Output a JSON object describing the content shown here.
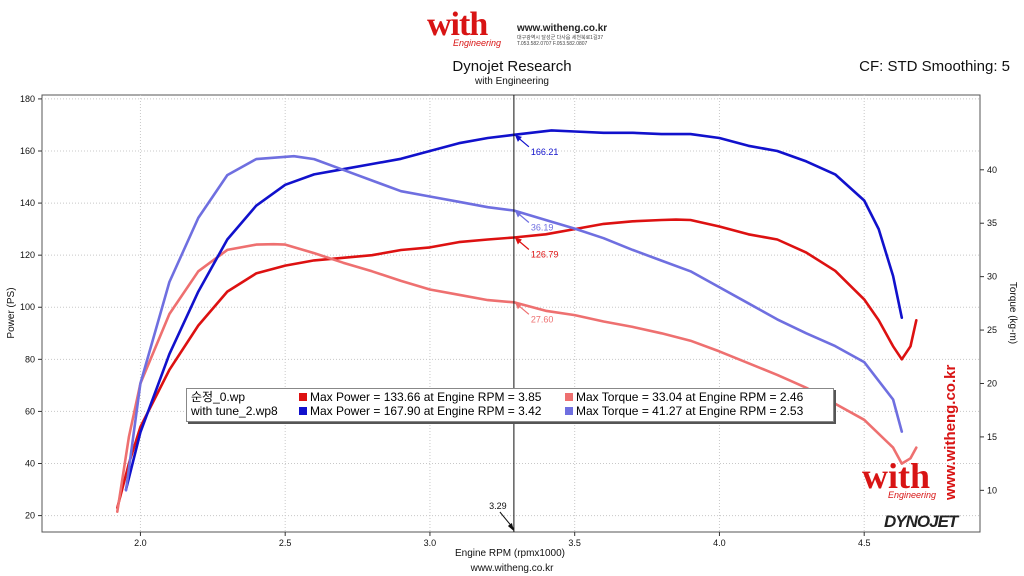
{
  "header": {
    "logo_text": "with",
    "logo_sub": "Engineering",
    "site_url": "www.witheng.co.kr",
    "address_line": "대구광역시 달성군 다사읍 세천북로1길37",
    "phone_line": "T.053.582.0707 F.053.582.0807",
    "title": "Dynojet Research",
    "subtitle": "with Engineering",
    "cf_smoothing": "CF: STD Smoothing: 5"
  },
  "footer": {
    "url": "www.witheng.co.kr",
    "side_url": "www.witheng.co.kr",
    "side_logo_text": "with",
    "side_logo_sub": "Engineering",
    "dynojet_logo": "DYNOJET"
  },
  "legend": {
    "rows": [
      {
        "name": "순정_0.wp",
        "power_text": "Max Power = 133.66 at Engine RPM = 3.85",
        "torque_text": "Max Torque = 33.04 at Engine RPM = 2.46",
        "power_color": "#dd1111",
        "torque_color": "#ee7070"
      },
      {
        "name": "with tune_2.wp8",
        "power_text": "Max Power = 167.90 at Engine RPM = 3.42",
        "torque_text": "Max Torque = 41.27 at Engine RPM = 2.53",
        "power_color": "#1111cc",
        "torque_color": "#6f6fe0"
      }
    ]
  },
  "chart_data": {
    "type": "line",
    "title": "Dynojet Research",
    "subtitle": "with Engineering",
    "xlabel": "Engine RPM (rpmx1000)",
    "ylabel": "Power (PS)",
    "y2label": "Torque (kg-m)",
    "xlim": [
      1.66,
      4.9
    ],
    "ylim": [
      13.7,
      181.5
    ],
    "y2lim": [
      6.1,
      47.0
    ],
    "x_ticks": [
      2.0,
      2.5,
      3.0,
      3.5,
      4.0,
      4.5
    ],
    "y_ticks": [
      20,
      40,
      60,
      80,
      100,
      120,
      140,
      160,
      180
    ],
    "y2_ticks": [
      10,
      15,
      20,
      25,
      30,
      35,
      40
    ],
    "grid": true,
    "cursor": {
      "x": 3.29,
      "label": "3.29"
    },
    "series": [
      {
        "name": "순정_0.wp Power",
        "axis": "left",
        "color": "#dd1111",
        "x": [
          1.92,
          1.96,
          2.0,
          2.1,
          2.2,
          2.3,
          2.4,
          2.5,
          2.6,
          2.7,
          2.8,
          2.9,
          3.0,
          3.1,
          3.2,
          3.29,
          3.4,
          3.5,
          3.6,
          3.7,
          3.8,
          3.85,
          3.9,
          4.0,
          4.1,
          4.2,
          4.3,
          4.4,
          4.5,
          4.55,
          4.6,
          4.63,
          4.66,
          4.68
        ],
        "y": [
          23,
          40,
          54,
          76,
          93,
          106,
          113,
          116,
          118,
          119,
          120,
          122,
          123,
          125,
          126,
          126.79,
          128,
          130,
          132,
          133,
          133.5,
          133.66,
          133.5,
          131,
          128,
          126,
          121,
          114,
          103,
          95,
          85,
          80,
          85,
          95
        ],
        "marker_label": "126.79"
      },
      {
        "name": "순정_0.wp Torque",
        "axis": "right",
        "color": "#ee7070",
        "x": [
          1.92,
          1.96,
          2.0,
          2.1,
          2.2,
          2.3,
          2.4,
          2.46,
          2.5,
          2.6,
          2.7,
          2.8,
          2.9,
          3.0,
          3.1,
          3.2,
          3.29,
          3.4,
          3.5,
          3.6,
          3.7,
          3.8,
          3.9,
          4.0,
          4.1,
          4.2,
          4.3,
          4.4,
          4.5,
          4.6,
          4.63,
          4.66,
          4.68
        ],
        "y": [
          8.0,
          15.0,
          20.0,
          26.5,
          30.5,
          32.5,
          33.0,
          33.04,
          33.0,
          32.2,
          31.3,
          30.5,
          29.6,
          28.8,
          28.3,
          27.8,
          27.6,
          26.8,
          26.4,
          25.8,
          25.3,
          24.7,
          24.0,
          23.0,
          21.9,
          20.8,
          19.6,
          18.1,
          16.6,
          14.0,
          12.5,
          13.0,
          14.0
        ],
        "marker_label": "27.60"
      },
      {
        "name": "with tune_2.wp8 Power",
        "axis": "left",
        "color": "#1111cc",
        "x": [
          1.95,
          2.0,
          2.1,
          2.2,
          2.3,
          2.4,
          2.5,
          2.6,
          2.7,
          2.8,
          2.9,
          3.0,
          3.1,
          3.2,
          3.29,
          3.42,
          3.5,
          3.6,
          3.7,
          3.8,
          3.9,
          4.0,
          4.1,
          4.2,
          4.3,
          4.4,
          4.5,
          4.55,
          4.6,
          4.63
        ],
        "y": [
          30,
          52,
          82,
          106,
          126,
          139,
          147,
          151,
          153,
          155,
          157,
          160,
          163,
          165,
          166.21,
          167.9,
          167.5,
          167,
          167,
          166.5,
          166.5,
          165,
          162,
          160,
          156,
          151,
          141,
          130,
          112,
          96
        ],
        "marker_label": "166.21"
      },
      {
        "name": "with tune_2.wp8 Torque",
        "axis": "right",
        "color": "#6f6fe0",
        "x": [
          1.95,
          2.0,
          2.1,
          2.2,
          2.3,
          2.4,
          2.53,
          2.6,
          2.7,
          2.8,
          2.9,
          3.0,
          3.1,
          3.2,
          3.29,
          3.4,
          3.5,
          3.6,
          3.7,
          3.8,
          3.9,
          4.0,
          4.1,
          4.2,
          4.3,
          4.4,
          4.5,
          4.6,
          4.63
        ],
        "y": [
          10.0,
          20.0,
          29.5,
          35.5,
          39.5,
          41.0,
          41.27,
          41.0,
          40.0,
          39.0,
          38.0,
          37.5,
          37.0,
          36.5,
          36.19,
          35.3,
          34.5,
          33.6,
          32.5,
          31.5,
          30.5,
          29.0,
          27.5,
          26.0,
          24.7,
          23.5,
          22.0,
          18.5,
          15.5
        ],
        "marker_label": "36.19"
      }
    ]
  }
}
